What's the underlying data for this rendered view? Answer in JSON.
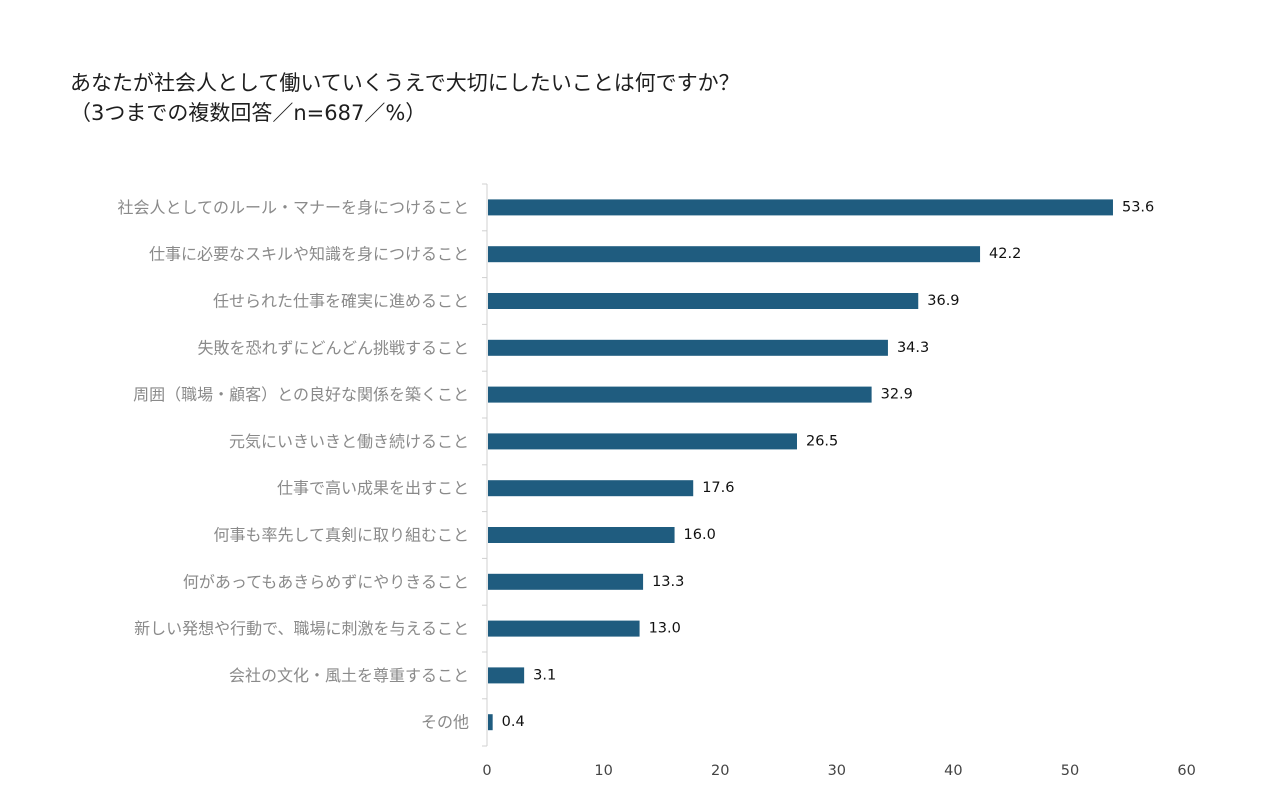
{
  "title": {
    "line1": "あなたが社会人として働いていくうえで大切にしたいことは何ですか？",
    "line2": "（3つまでの複数回答／n=687／%）"
  },
  "chart_data": {
    "type": "bar",
    "orientation": "horizontal",
    "title": "あなたが社会人として働いていくうえで大切にしたいことは何ですか？（3つまでの複数回答／n=687／%）",
    "categories": [
      "社会人としてのルール・マナーを身につけること",
      "仕事に必要なスキルや知識を身につけること",
      "任せられた仕事を確実に進めること",
      "失敗を恐れずにどんどん挑戦すること",
      "周囲（職場・顧客）との良好な関係を築くこと",
      "元気にいきいきと働き続けること",
      "仕事で高い成果を出すこと",
      "何事も率先して真剣に取り組むこと",
      "何があってもあきらめずにやりきること",
      "新しい発想や行動で、職場に刺激を与えること",
      "会社の文化・風土を尊重すること",
      "その他"
    ],
    "values": [
      53.6,
      42.2,
      36.9,
      34.3,
      32.9,
      26.5,
      17.6,
      16.0,
      13.3,
      13.0,
      3.1,
      0.4
    ],
    "value_labels": [
      "53.6",
      "42.2",
      "36.9",
      "34.3",
      "32.9",
      "26.5",
      "17.6",
      "16.0",
      "13.3",
      "13.0",
      "3.1",
      "0.4"
    ],
    "xlim": [
      0,
      60
    ],
    "xticks": [
      0,
      10,
      20,
      30,
      40,
      50,
      60
    ],
    "xlabel": "",
    "ylabel": "",
    "grid": false,
    "bar_color": "#1f5c7f"
  }
}
